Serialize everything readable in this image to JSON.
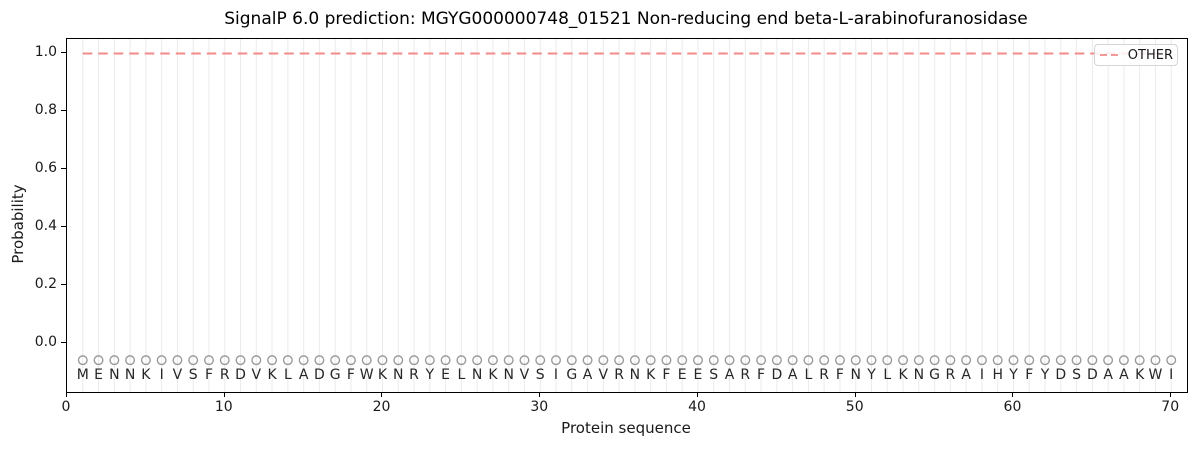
{
  "chart_data": {
    "type": "line",
    "title": "SignalP 6.0 prediction: MGYG000000748_01521 Non-reducing end beta-L-arabinofuranosidase",
    "xlabel": "Protein sequence",
    "ylabel": "Probability",
    "xlim": [
      0,
      71
    ],
    "ylim": [
      -0.17,
      1.05
    ],
    "xticks": [
      0,
      10,
      20,
      30,
      40,
      50,
      60,
      70
    ],
    "yticks": [
      0.0,
      0.2,
      0.4,
      0.6,
      0.8,
      1.0
    ],
    "grid": {
      "vertical_per_residue": true,
      "color": "#ebebeb"
    },
    "series": [
      {
        "name": "OTHER",
        "linestyle": "dashed",
        "color": "#f28a8a",
        "x": [
          1,
          70
        ],
        "y": [
          1.0,
          1.0
        ],
        "description": "constant probability 1.0 across all 70 residues"
      }
    ],
    "legend": {
      "position": "upper right",
      "entries": [
        "OTHER"
      ]
    },
    "sequence": "MENNKIVSFRDVKLADGFWKNRYELNKNVSIGAVRNKFEESARFDALRFNYLKNGRAIHYFYDSDAAKWI",
    "residue_markers": {
      "shape": "open-circle",
      "color": "#9a9a9a",
      "y": -0.06
    },
    "sequence_letters_y": -0.112,
    "axis_color": "#000000",
    "text_color": "#1a1a1a"
  }
}
